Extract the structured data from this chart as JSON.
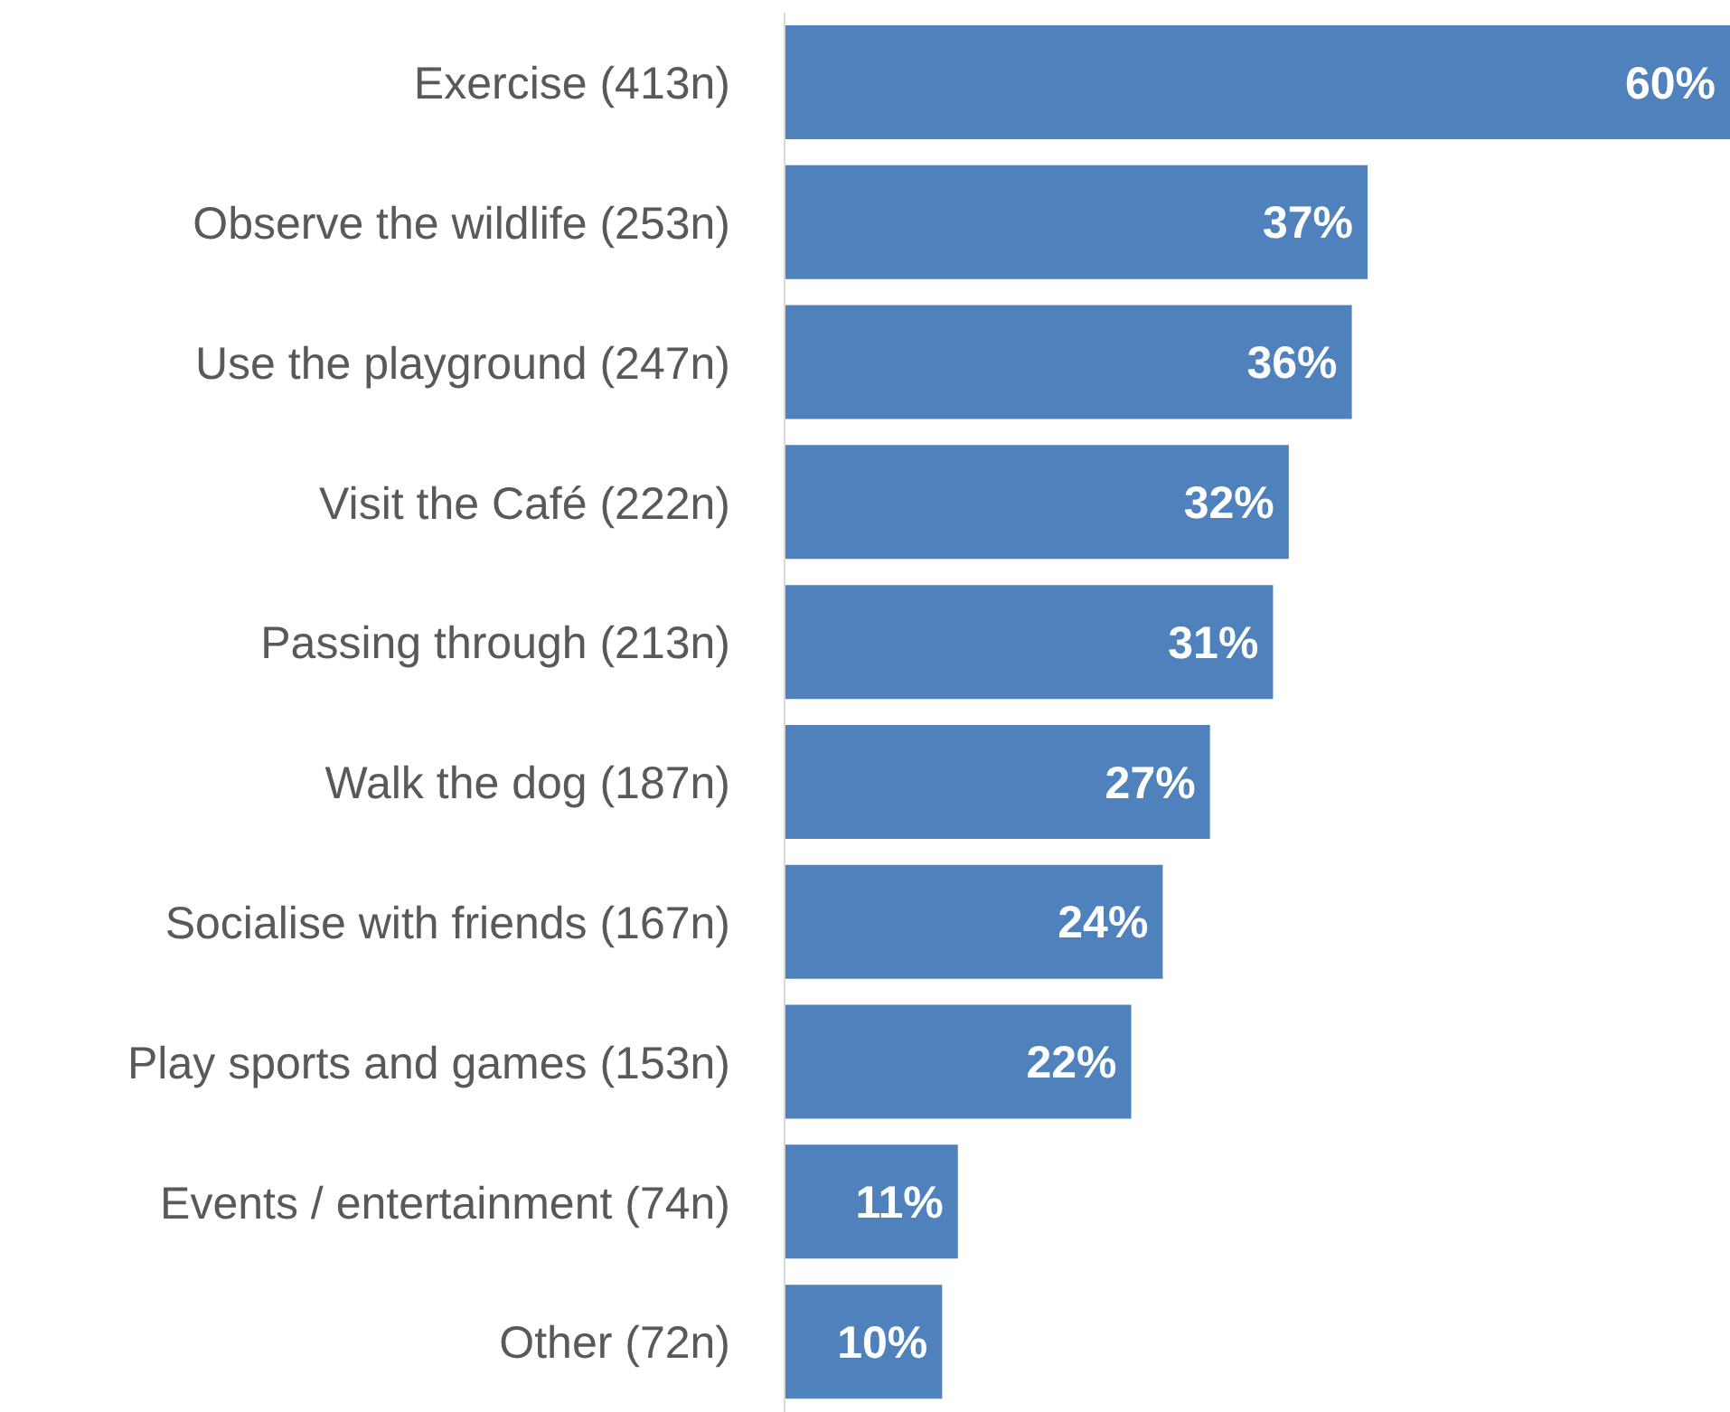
{
  "chart_data": {
    "type": "bar",
    "orientation": "horizontal",
    "relative": false,
    "categories": [
      "Exercise (413n)",
      "Observe the wildlife (253n)",
      "Use the playground (247n)",
      "Visit the Café (222n)",
      "Passing through (213n)",
      "Walk the dog (187n)",
      "Socialise with friends (167n)",
      "Play sports and games (153n)",
      "Events / entertainment (74n)",
      "Other (72n)"
    ],
    "values": [
      60,
      37,
      36,
      32,
      31,
      27,
      24,
      22,
      11,
      10
    ],
    "value_labels": [
      "60%",
      "37%",
      "36%",
      "32%",
      "31%",
      "27%",
      "24%",
      "22%",
      "11%",
      "10%"
    ],
    "color": "#4f81bd",
    "grid": false,
    "legend": false
  }
}
